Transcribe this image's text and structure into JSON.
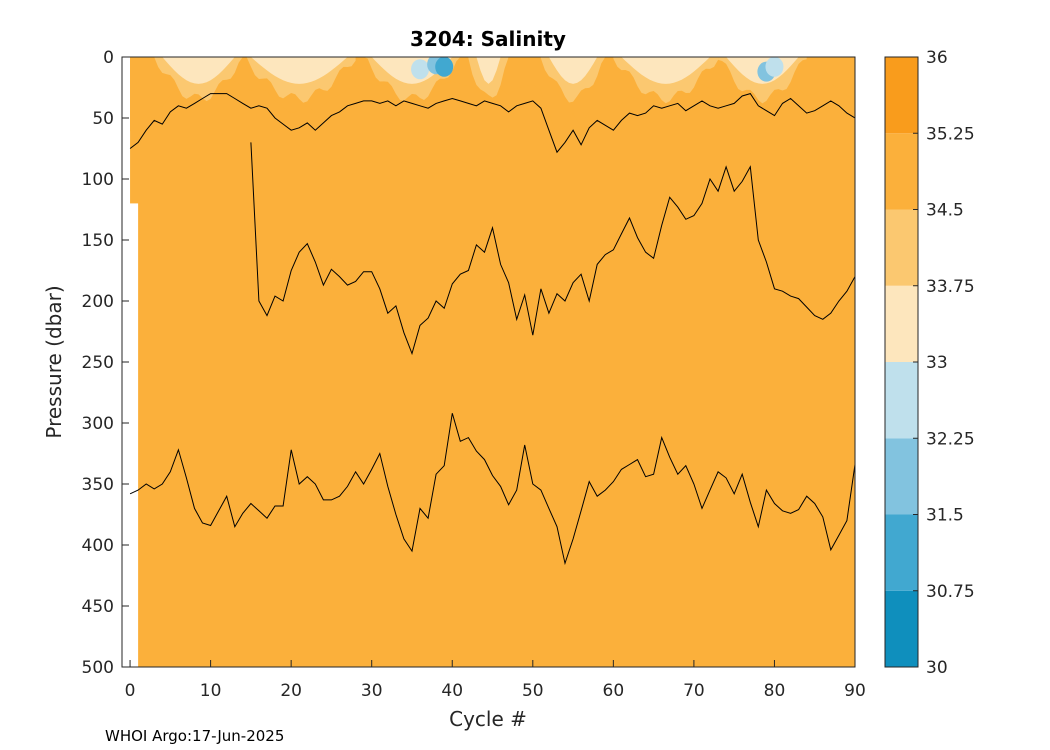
{
  "figure": {
    "title": "3204:  Salinity",
    "credit": "WHOI Argo:17-Jun-2025"
  },
  "chart_data": {
    "type": "contour",
    "title": "3204:  Salinity",
    "xlabel": "Cycle #",
    "ylabel": "Pressure (dbar)",
    "xlim": [
      -1,
      90
    ],
    "ylim": [
      0,
      500
    ],
    "y_reversed": true,
    "xticks": [
      0,
      10,
      20,
      30,
      40,
      50,
      60,
      70,
      80,
      90
    ],
    "yticks": [
      0,
      50,
      100,
      150,
      200,
      250,
      300,
      350,
      400,
      450,
      500
    ],
    "colorbar": {
      "levels": [
        30,
        30.75,
        31.5,
        32.25,
        33,
        33.75,
        34.5,
        35.25,
        36
      ],
      "labels": [
        "30",
        "30.75",
        "31.5",
        "32.25",
        "33",
        "33.75",
        "34.5",
        "35.25",
        "36"
      ],
      "colors": [
        "#0f8fbd",
        "#41a8d0",
        "#82c3df",
        "#bfe0ec",
        "#fde6bd",
        "#fbc870",
        "#fbb03b",
        "#f99c1c"
      ]
    },
    "contours": [
      {
        "level": 34.5,
        "pressure_by_cycle": [
          [
            0,
            358
          ],
          [
            1,
            355
          ],
          [
            2,
            350
          ],
          [
            3,
            354
          ],
          [
            4,
            350
          ],
          [
            5,
            340
          ],
          [
            6,
            322
          ],
          [
            7,
            345
          ],
          [
            8,
            370
          ],
          [
            9,
            382
          ],
          [
            10,
            384
          ],
          [
            11,
            372
          ],
          [
            12,
            360
          ],
          [
            13,
            385
          ],
          [
            14,
            374
          ],
          [
            15,
            366
          ],
          [
            16,
            372
          ],
          [
            17,
            378
          ],
          [
            18,
            368
          ],
          [
            19,
            368
          ],
          [
            20,
            322
          ],
          [
            21,
            350
          ],
          [
            22,
            344
          ],
          [
            23,
            350
          ],
          [
            24,
            363
          ],
          [
            25,
            363
          ],
          [
            26,
            360
          ],
          [
            27,
            352
          ],
          [
            28,
            340
          ],
          [
            29,
            350
          ],
          [
            30,
            338
          ],
          [
            31,
            325
          ],
          [
            32,
            352
          ],
          [
            33,
            375
          ],
          [
            34,
            395
          ],
          [
            35,
            405
          ],
          [
            36,
            370
          ],
          [
            37,
            378
          ],
          [
            38,
            342
          ],
          [
            39,
            335
          ],
          [
            40,
            292
          ],
          [
            41,
            315
          ],
          [
            42,
            312
          ],
          [
            43,
            323
          ],
          [
            44,
            330
          ],
          [
            45,
            343
          ],
          [
            46,
            352
          ],
          [
            47,
            367
          ],
          [
            48,
            355
          ],
          [
            49,
            318
          ],
          [
            50,
            350
          ],
          [
            51,
            355
          ],
          [
            52,
            370
          ],
          [
            53,
            385
          ],
          [
            54,
            415
          ],
          [
            55,
            395
          ],
          [
            56,
            372
          ],
          [
            57,
            348
          ],
          [
            58,
            360
          ],
          [
            59,
            355
          ],
          [
            60,
            348
          ],
          [
            61,
            338
          ],
          [
            62,
            334
          ],
          [
            63,
            330
          ],
          [
            64,
            344
          ],
          [
            65,
            342
          ],
          [
            66,
            312
          ],
          [
            67,
            328
          ],
          [
            68,
            342
          ],
          [
            69,
            335
          ],
          [
            70,
            350
          ],
          [
            71,
            370
          ],
          [
            72,
            355
          ],
          [
            73,
            340
          ],
          [
            74,
            345
          ],
          [
            75,
            358
          ],
          [
            76,
            342
          ],
          [
            77,
            365
          ],
          [
            78,
            385
          ],
          [
            79,
            355
          ],
          [
            80,
            366
          ],
          [
            81,
            372
          ],
          [
            82,
            374
          ],
          [
            83,
            371
          ],
          [
            84,
            360
          ],
          [
            85,
            366
          ],
          [
            86,
            377
          ],
          [
            87,
            404
          ],
          [
            88,
            392
          ],
          [
            89,
            380
          ],
          [
            90,
            334
          ]
        ]
      },
      {
        "level": 35.25,
        "pressure_by_cycle": [
          [
            15,
            70
          ],
          [
            16,
            200
          ],
          [
            17,
            212
          ],
          [
            18,
            196
          ],
          [
            19,
            200
          ],
          [
            20,
            175
          ],
          [
            21,
            160
          ],
          [
            22,
            153
          ],
          [
            23,
            168
          ],
          [
            24,
            187
          ],
          [
            25,
            174
          ],
          [
            26,
            180
          ],
          [
            27,
            187
          ],
          [
            28,
            184
          ],
          [
            29,
            176
          ],
          [
            30,
            176
          ],
          [
            31,
            190
          ],
          [
            32,
            210
          ],
          [
            33,
            204
          ],
          [
            34,
            226
          ],
          [
            35,
            243
          ],
          [
            36,
            220
          ],
          [
            37,
            214
          ],
          [
            38,
            200
          ],
          [
            39,
            206
          ],
          [
            40,
            186
          ],
          [
            41,
            178
          ],
          [
            42,
            175
          ],
          [
            43,
            154
          ],
          [
            44,
            160
          ],
          [
            45,
            140
          ],
          [
            46,
            170
          ],
          [
            47,
            185
          ],
          [
            48,
            215
          ],
          [
            49,
            195
          ],
          [
            50,
            228
          ],
          [
            51,
            190
          ],
          [
            52,
            210
          ],
          [
            53,
            194
          ],
          [
            54,
            200
          ],
          [
            55,
            185
          ],
          [
            56,
            178
          ],
          [
            57,
            200
          ],
          [
            58,
            170
          ],
          [
            59,
            162
          ],
          [
            60,
            158
          ],
          [
            61,
            145
          ],
          [
            62,
            132
          ],
          [
            63,
            148
          ],
          [
            64,
            160
          ],
          [
            65,
            165
          ],
          [
            66,
            138
          ],
          [
            67,
            115
          ],
          [
            68,
            123
          ],
          [
            69,
            133
          ],
          [
            70,
            130
          ],
          [
            71,
            120
          ],
          [
            72,
            100
          ],
          [
            73,
            110
          ],
          [
            74,
            90
          ],
          [
            75,
            110
          ],
          [
            76,
            102
          ],
          [
            77,
            90
          ],
          [
            78,
            150
          ],
          [
            79,
            168
          ],
          [
            80,
            190
          ],
          [
            81,
            192
          ],
          [
            82,
            196
          ],
          [
            83,
            198
          ],
          [
            84,
            205
          ],
          [
            85,
            212
          ],
          [
            86,
            215
          ],
          [
            87,
            210
          ],
          [
            88,
            200
          ],
          [
            89,
            192
          ],
          [
            90,
            180
          ]
        ]
      },
      {
        "level": 34.5,
        "pressure_by_cycle": [
          [
            0,
            75
          ],
          [
            1,
            70
          ],
          [
            2,
            60
          ],
          [
            3,
            52
          ],
          [
            4,
            55
          ],
          [
            5,
            45
          ],
          [
            6,
            40
          ],
          [
            7,
            42
          ],
          [
            8,
            38
          ],
          [
            9,
            34
          ],
          [
            10,
            30
          ],
          [
            11,
            30
          ],
          [
            12,
            30
          ],
          [
            13,
            34
          ],
          [
            14,
            38
          ],
          [
            15,
            42
          ],
          [
            16,
            40
          ],
          [
            17,
            42
          ],
          [
            18,
            50
          ],
          [
            19,
            55
          ],
          [
            20,
            60
          ],
          [
            21,
            58
          ],
          [
            22,
            54
          ],
          [
            23,
            60
          ],
          [
            24,
            54
          ],
          [
            25,
            48
          ],
          [
            26,
            45
          ],
          [
            27,
            40
          ],
          [
            28,
            38
          ],
          [
            29,
            36
          ],
          [
            30,
            36
          ],
          [
            31,
            38
          ],
          [
            32,
            36
          ],
          [
            33,
            40
          ],
          [
            34,
            36
          ],
          [
            35,
            38
          ],
          [
            36,
            40
          ],
          [
            37,
            42
          ],
          [
            38,
            38
          ],
          [
            39,
            36
          ],
          [
            40,
            34
          ],
          [
            41,
            36
          ],
          [
            42,
            38
          ],
          [
            43,
            40
          ],
          [
            44,
            36
          ],
          [
            45,
            38
          ],
          [
            46,
            40
          ],
          [
            47,
            45
          ],
          [
            48,
            40
          ],
          [
            49,
            38
          ],
          [
            50,
            36
          ],
          [
            51,
            42
          ],
          [
            52,
            60
          ],
          [
            53,
            78
          ],
          [
            54,
            70
          ],
          [
            55,
            60
          ],
          [
            56,
            72
          ],
          [
            57,
            58
          ],
          [
            58,
            52
          ],
          [
            59,
            56
          ],
          [
            60,
            60
          ],
          [
            61,
            52
          ],
          [
            62,
            46
          ],
          [
            63,
            48
          ],
          [
            64,
            46
          ],
          [
            65,
            40
          ],
          [
            66,
            42
          ],
          [
            67,
            40
          ],
          [
            68,
            38
          ],
          [
            69,
            44
          ],
          [
            70,
            40
          ],
          [
            71,
            36
          ],
          [
            72,
            40
          ],
          [
            73,
            42
          ],
          [
            74,
            40
          ],
          [
            75,
            38
          ],
          [
            76,
            32
          ],
          [
            77,
            30
          ],
          [
            78,
            40
          ],
          [
            79,
            44
          ],
          [
            80,
            48
          ],
          [
            81,
            38
          ],
          [
            82,
            34
          ],
          [
            83,
            40
          ],
          [
            84,
            46
          ],
          [
            85,
            44
          ],
          [
            86,
            40
          ],
          [
            87,
            36
          ],
          [
            88,
            40
          ],
          [
            89,
            46
          ],
          [
            90,
            50
          ]
        ]
      }
    ],
    "surface_fresh_cycles": [
      [
        3,
        14
      ],
      [
        14,
        28
      ],
      [
        29,
        41
      ],
      [
        42,
        47
      ],
      [
        51,
        59
      ],
      [
        60,
        73
      ],
      [
        73,
        84
      ]
    ]
  }
}
